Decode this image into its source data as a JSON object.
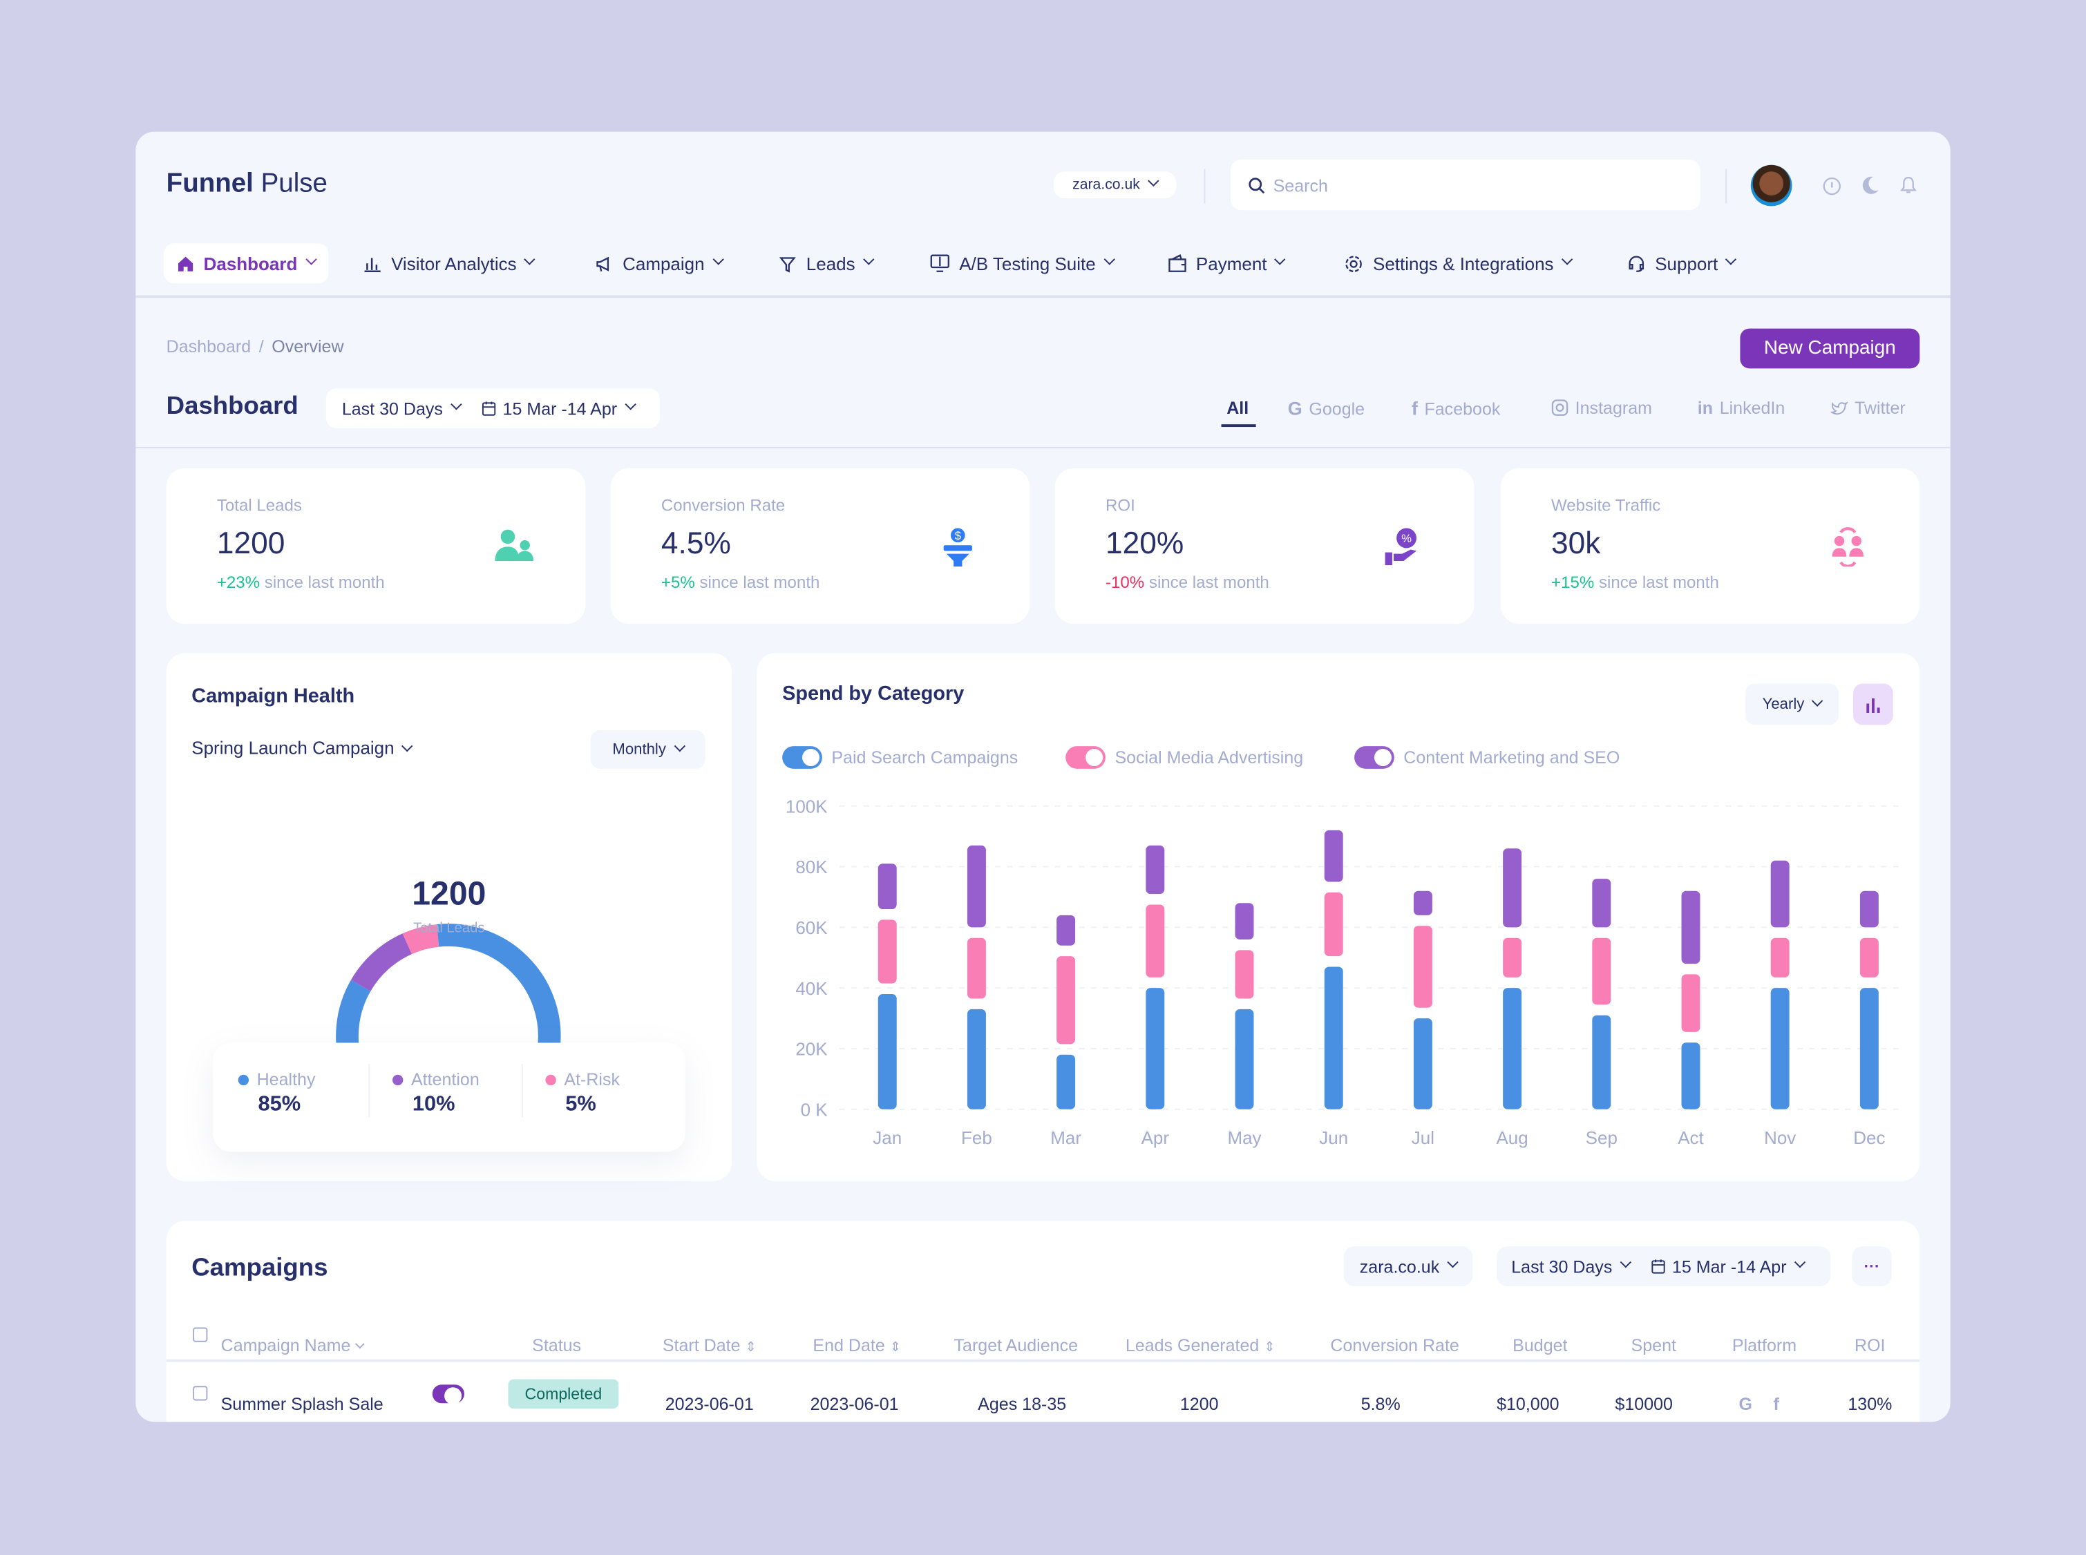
{
  "app": {
    "brand_bold": "Funnel",
    "brand_light": "Pulse"
  },
  "header": {
    "domain": "zara.co.uk",
    "search_placeholder": "Search"
  },
  "nav": [
    {
      "label": "Dashboard",
      "icon": "home-icon",
      "active": true
    },
    {
      "label": "Visitor Analytics",
      "icon": "bar-chart-icon"
    },
    {
      "label": "Campaign",
      "icon": "megaphone-icon"
    },
    {
      "label": "Leads",
      "icon": "funnel-icon"
    },
    {
      "label": "A/B Testing Suite",
      "icon": "ab-test-icon"
    },
    {
      "label": "Payment",
      "icon": "wallet-icon"
    },
    {
      "label": "Settings & Integrations",
      "icon": "gear-icon"
    },
    {
      "label": "Support",
      "icon": "headset-icon"
    }
  ],
  "breadcrumb": {
    "root": "Dashboard",
    "current": "Overview"
  },
  "new_campaign": "New Campaign",
  "page_title": "Dashboard",
  "filters": {
    "period": "Last 30 Days",
    "range": "15 Mar -14 Apr"
  },
  "platform_tabs": [
    "All",
    "Google",
    "Facebook",
    "Instagram",
    "LinkedIn",
    "Twitter"
  ],
  "kpis": [
    {
      "label": "Total Leads",
      "value": "1200",
      "delta": "+23%",
      "sub": "since last month",
      "trend": "up",
      "color": "#4fd1b1",
      "icon": "users-icon"
    },
    {
      "label": "Conversion Rate",
      "value": "4.5%",
      "delta": "+5%",
      "sub": "since last month",
      "trend": "up",
      "color": "#2f7bf5",
      "icon": "funnel-dollar-icon"
    },
    {
      "label": "ROI",
      "value": "120%",
      "delta": "-10%",
      "sub": "since last month",
      "trend": "down",
      "color": "#7b44c9",
      "icon": "hand-percent-icon"
    },
    {
      "label": "Website Traffic",
      "value": "30k",
      "delta": "+15%",
      "sub": "since last month",
      "trend": "up",
      "color": "#f97eb6",
      "icon": "people-exchange-icon"
    }
  ],
  "colors": {
    "up": "#18c58f",
    "down": "#ee2f5e",
    "accent": "#7a35b8",
    "blue": "#4a90e2",
    "pink": "#f97eb6",
    "purple": "#965fcc"
  },
  "health": {
    "title": "Campaign Health",
    "campaign": "Spring Launch Campaign",
    "period": "Monthly",
    "total": "1200",
    "total_label": "Total Leads",
    "segments": [
      {
        "label": "Healthy",
        "value": 85,
        "display": "85%",
        "color": "#4a90e2"
      },
      {
        "label": "Attention",
        "value": 10,
        "display": "10%",
        "color": "#965fcc"
      },
      {
        "label": "At-Risk",
        "value": 5,
        "display": "5%",
        "color": "#f97eb6"
      }
    ]
  },
  "chart_data": {
    "type": "bar",
    "title": "Spend by Category",
    "period": "Yearly",
    "stacked": true,
    "categories": [
      "Jan",
      "Feb",
      "Mar",
      "Apr",
      "May",
      "Jun",
      "Jul",
      "Aug",
      "Sep",
      "Act",
      "Nov",
      "Dec"
    ],
    "yticks": [
      "0 K",
      "20K",
      "40K",
      "60K",
      "80K",
      "100K"
    ],
    "ylim": [
      0,
      100000
    ],
    "grid": true,
    "legend": "top-left",
    "series": [
      {
        "name": "Paid Search Campaigns",
        "color": "#4a90e2",
        "values": [
          38000,
          33000,
          18000,
          40000,
          33000,
          47000,
          30000,
          40000,
          31000,
          22000,
          40000,
          40000
        ]
      },
      {
        "name": "Social Media Advertising",
        "color": "#f97eb6",
        "values": [
          21000,
          20000,
          29000,
          24000,
          16000,
          21000,
          27000,
          13000,
          22000,
          19000,
          13000,
          13000
        ]
      },
      {
        "name": "Content Marketing and SEO",
        "color": "#965fcc",
        "values": [
          15000,
          27000,
          10000,
          16000,
          12000,
          17000,
          8000,
          26000,
          16000,
          24000,
          22000,
          12000
        ]
      }
    ]
  },
  "campaigns": {
    "title": "Campaigns",
    "domain": "zara.co.uk",
    "period": "Last 30 Days",
    "range": "15 Mar -14 Apr",
    "more": "···",
    "columns": [
      "Campaign Name",
      "Status",
      "Start Date",
      "End Date",
      "Target Audience",
      "Leads Generated",
      "Conversion Rate",
      "Budget",
      "Spent",
      "Platform",
      "ROI"
    ],
    "rows": [
      {
        "name": "Summer Splash Sale",
        "enabled": true,
        "status": "Completed",
        "start": "2023-06-01",
        "end": "2023-06-01",
        "audience": "Ages 18-35",
        "leads": "1200",
        "conversion": "5.8%",
        "budget": "$10,000",
        "spent": "$10000",
        "platforms": [
          "google-icon",
          "facebook-icon"
        ],
        "roi": "130%"
      }
    ]
  }
}
